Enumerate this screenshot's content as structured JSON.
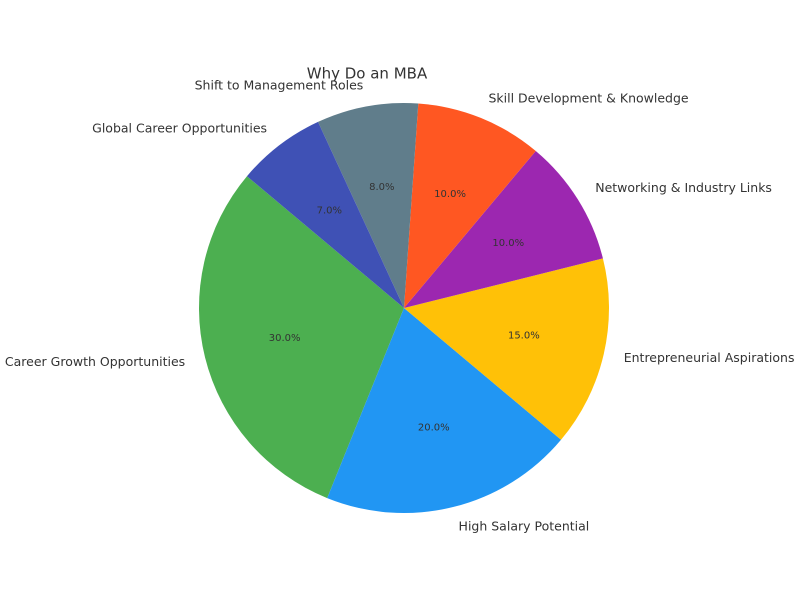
{
  "chart_data": {
    "type": "pie",
    "title": "Why Do an MBA",
    "categories": [
      "Career Growth Opportunities",
      "High Salary Potential",
      "Entrepreneurial Aspirations",
      "Networking & Industry Links",
      "Skill Development & Knowledge",
      "Shift to Management Roles",
      "Global Career Opportunities"
    ],
    "values": [
      30,
      20,
      15,
      10,
      10,
      8,
      7
    ],
    "value_labels": [
      "30.0%",
      "20.0%",
      "15.0%",
      "10.0%",
      "10.0%",
      "8.0%",
      "7.0%"
    ],
    "colors": [
      "#4caf50",
      "#2196f3",
      "#ffc107",
      "#9c27b0",
      "#ff5722",
      "#607d8b",
      "#3f51b5"
    ]
  }
}
